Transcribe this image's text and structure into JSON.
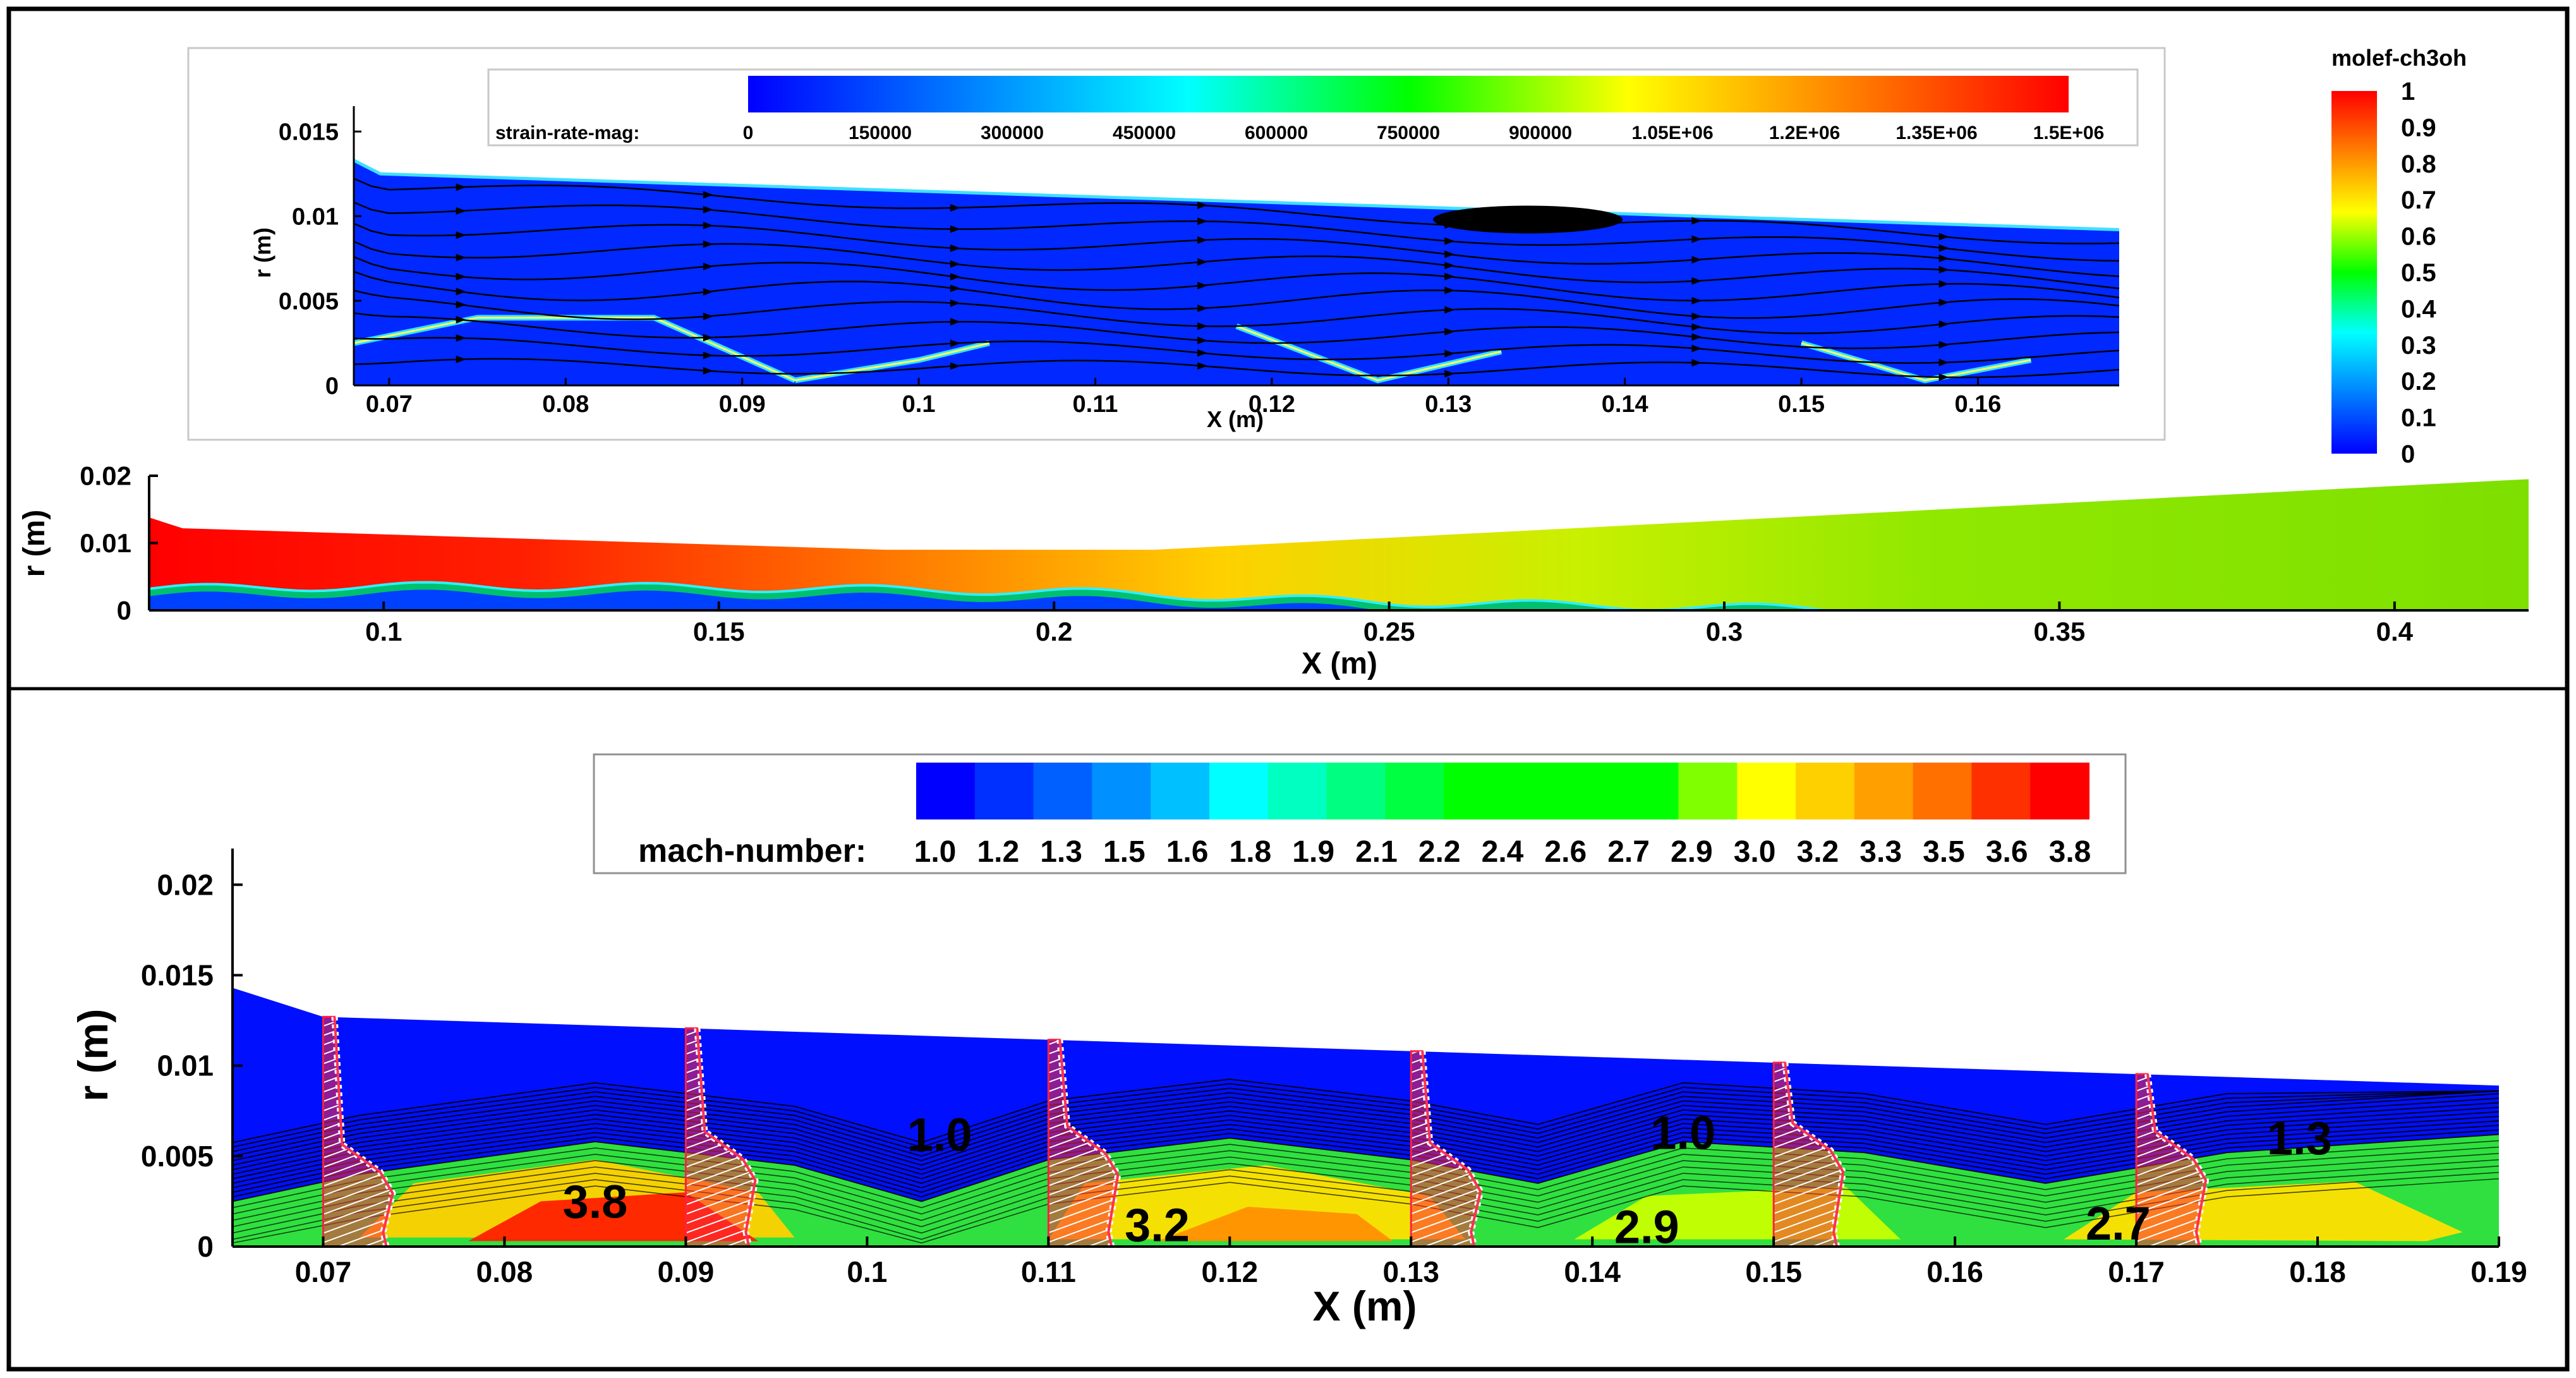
{
  "colors": {
    "jet": [
      "#0000ff",
      "#0040ff",
      "#0080ff",
      "#00c0ff",
      "#00ffff",
      "#00ff80",
      "#00ff00",
      "#80ff00",
      "#ffff00",
      "#ffc000",
      "#ff8000",
      "#ff4000",
      "#ff0000"
    ],
    "mach": [
      "#0000ff",
      "#0030ff",
      "#0060ff",
      "#0090ff",
      "#00c0ff",
      "#00ffff",
      "#00ffc0",
      "#00ff80",
      "#00ff40",
      "#00ff00",
      "#00ff00",
      "#00ff00",
      "#00ff00",
      "#80ff00",
      "#ffff00",
      "#ffd000",
      "#ffa000",
      "#ff7000",
      "#ff3000",
      "#ff0000"
    ],
    "frame": "#000000",
    "streamline": "#000000",
    "profile": "#ff3040"
  },
  "chart_data": [
    {
      "id": "strain-rate",
      "type": "heatmap",
      "title": "",
      "legend_label": "strain-rate-mag:",
      "legend_ticks": [
        "0",
        "150000",
        "300000",
        "450000",
        "600000",
        "750000",
        "900000",
        "1.05E+06",
        "1.2E+06",
        "1.35E+06",
        "1.5E+06"
      ],
      "xlabel": "X (m)",
      "ylabel": "r (m)",
      "xlim": [
        0.068,
        0.168
      ],
      "ylim": [
        0,
        0.0165
      ],
      "xticks": [
        "0.07",
        "0.08",
        "0.09",
        "0.1",
        "0.11",
        "0.12",
        "0.13",
        "0.14",
        "0.15",
        "0.16"
      ],
      "xtick_values": [
        0.07,
        0.08,
        0.09,
        0.1,
        0.11,
        0.12,
        0.13,
        0.14,
        0.15,
        0.16
      ],
      "yticks": [
        "0",
        "0.005",
        "0.01",
        "0.015"
      ],
      "ytick_values": [
        0,
        0.005,
        0.01,
        0.015
      ],
      "wall": [
        [
          0.068,
          0.0133
        ],
        [
          0.0695,
          0.0125
        ],
        [
          0.168,
          0.0092
        ]
      ],
      "streamlines_r": [
        0.0012,
        0.0024,
        0.0036,
        0.0048,
        0.006,
        0.0072,
        0.0084,
        0.0096,
        0.0108,
        0.012
      ]
    },
    {
      "id": "molef-ch3oh",
      "type": "heatmap",
      "colorbar_title": "molef-ch3oh",
      "colorbar_ticks": [
        "0",
        "0.1",
        "0.2",
        "0.3",
        "0.4",
        "0.5",
        "0.6",
        "0.7",
        "0.8",
        "0.9",
        "1"
      ],
      "colorbar_values": [
        0,
        0.1,
        0.2,
        0.3,
        0.4,
        0.5,
        0.6,
        0.7,
        0.8,
        0.9,
        1
      ],
      "xlabel": "X (m)",
      "ylabel": "r (m)",
      "xlim": [
        0.065,
        0.42
      ],
      "ylim": [
        0,
        0.02
      ],
      "xticks": [
        "0.1",
        "0.15",
        "0.2",
        "0.25",
        "0.3",
        "0.35",
        "0.4"
      ],
      "xtick_values": [
        0.1,
        0.15,
        0.2,
        0.25,
        0.3,
        0.35,
        0.4
      ],
      "yticks": [
        "0",
        "0.01",
        "0.02"
      ],
      "ytick_values": [
        0,
        0.01,
        0.02
      ],
      "wall": [
        [
          0.065,
          0.0138
        ],
        [
          0.07,
          0.0122
        ],
        [
          0.175,
          0.009
        ],
        [
          0.215,
          0.009
        ],
        [
          0.42,
          0.0195
        ]
      ],
      "interface_r": [
        [
          0.065,
          0.0032
        ],
        [
          0.1,
          0.0036
        ],
        [
          0.15,
          0.0034
        ],
        [
          0.2,
          0.0028
        ],
        [
          0.25,
          0.0012
        ],
        [
          0.33,
          0.0
        ]
      ]
    },
    {
      "id": "mach-number",
      "type": "heatmap",
      "legend_label": "mach-number:",
      "legend_ticks": [
        "1.0",
        "1.2",
        "1.3",
        "1.5",
        "1.6",
        "1.8",
        "1.9",
        "2.1",
        "2.2",
        "2.4",
        "2.6",
        "2.7",
        "2.9",
        "3.0",
        "3.2",
        "3.3",
        "3.5",
        "3.6",
        "3.8"
      ],
      "xlabel": "X (m)",
      "ylabel": "r (m)",
      "xlim": [
        0.065,
        0.19
      ],
      "ylim": [
        0,
        0.022
      ],
      "xticks": [
        "0.07",
        "0.08",
        "0.09",
        "0.1",
        "0.11",
        "0.12",
        "0.13",
        "0.14",
        "0.15",
        "0.16",
        "0.17",
        "0.18",
        "0.19"
      ],
      "xtick_values": [
        0.07,
        0.08,
        0.09,
        0.1,
        0.11,
        0.12,
        0.13,
        0.14,
        0.15,
        0.16,
        0.17,
        0.18,
        0.19
      ],
      "yticks": [
        "0",
        "0.005",
        "0.01",
        "0.015",
        "0.02"
      ],
      "ytick_values": [
        0,
        0.005,
        0.01,
        0.015,
        0.02
      ],
      "wall": [
        [
          0.065,
          0.0143
        ],
        [
          0.07,
          0.0127
        ],
        [
          0.19,
          0.0089
        ]
      ],
      "shear_layer": [
        [
          0.065,
          0.0025
        ],
        [
          0.072,
          0.004
        ],
        [
          0.085,
          0.0058
        ],
        [
          0.096,
          0.0045
        ],
        [
          0.103,
          0.0025
        ],
        [
          0.11,
          0.0048
        ],
        [
          0.12,
          0.006
        ],
        [
          0.13,
          0.0048
        ],
        [
          0.137,
          0.0035
        ],
        [
          0.145,
          0.0058
        ],
        [
          0.155,
          0.0052
        ],
        [
          0.165,
          0.0035
        ],
        [
          0.175,
          0.0052
        ],
        [
          0.19,
          0.0062
        ]
      ],
      "profile_x": [
        0.07,
        0.09,
        0.11,
        0.13,
        0.15,
        0.17
      ],
      "annotations": [
        {
          "label": "1.0",
          "x": 0.104,
          "r": 0.0062
        },
        {
          "label": "3.8",
          "x": 0.085,
          "r": 0.0025
        },
        {
          "label": "3.2",
          "x": 0.116,
          "r": 0.0012
        },
        {
          "label": "1.0",
          "x": 0.145,
          "r": 0.0063
        },
        {
          "label": "2.9",
          "x": 0.143,
          "r": 0.0011
        },
        {
          "label": "2.7",
          "x": 0.169,
          "r": 0.0013
        },
        {
          "label": "1.3",
          "x": 0.179,
          "r": 0.006
        }
      ]
    }
  ]
}
